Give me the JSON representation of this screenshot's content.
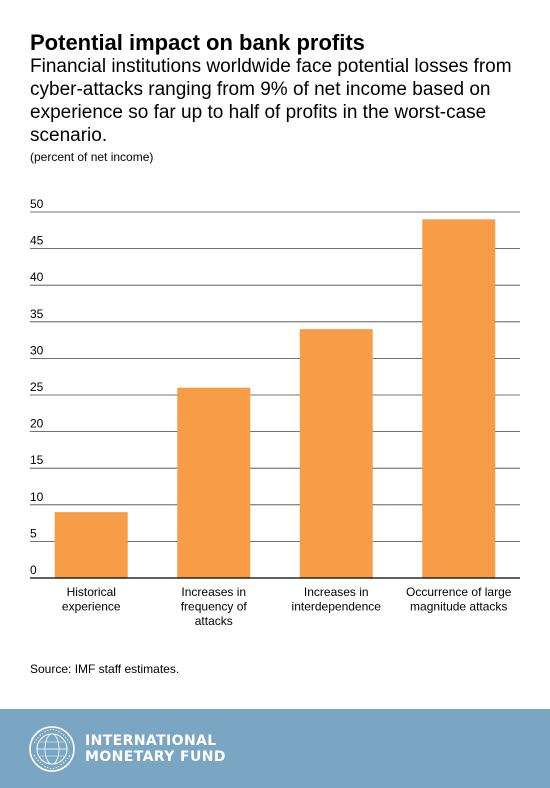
{
  "header": {
    "title": "Potential impact on bank profits",
    "subtitle": "Financial institutions worldwide face potential losses from cyber-attacks ranging from 9% of net income based on experience so far up to half of profits in the worst-case scenario.",
    "unit_note": "(percent of net income)"
  },
  "chart_data": {
    "type": "bar",
    "categories": [
      [
        "Historical",
        "experience"
      ],
      [
        "Increases in",
        "frequency of",
        "attacks"
      ],
      [
        "Increases in",
        "interdependence"
      ],
      [
        "Occurrence of large",
        "magnitude attacks"
      ]
    ],
    "values": [
      9,
      26,
      34,
      49
    ],
    "yticks": [
      "0",
      "5",
      "10",
      "15",
      "20",
      "25",
      "30",
      "35",
      "40",
      "45",
      "50"
    ],
    "ylim": [
      0,
      50
    ],
    "grid": true,
    "colors": {
      "bar": "#f79d48",
      "grid": "#444444",
      "axis": "#000000"
    }
  },
  "source": "Source: IMF staff estimates.",
  "footer": {
    "line1": "INTERNATIONAL",
    "line2": "MONETARY FUND",
    "background": "#7aa6c4",
    "logo_icon": "imf-seal-icon"
  }
}
